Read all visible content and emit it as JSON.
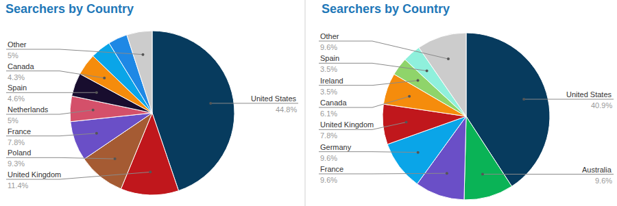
{
  "chart_data": [
    {
      "type": "pie",
      "title": "Searchers by Country",
      "categories": [
        "United States",
        "United Kingdom",
        "Poland",
        "France",
        "Netherlands",
        "Spain",
        "Canada",
        null,
        null,
        "Other"
      ],
      "values": [
        44.8,
        11.4,
        9.3,
        7.8,
        5,
        4.6,
        4.3,
        4.0,
        3.8,
        5
      ],
      "value_labels": [
        "44.8%",
        "11.4%",
        "9.3%",
        "7.8%",
        "5%",
        "4.6%",
        "4.3%",
        null,
        null,
        "5%"
      ],
      "colors": [
        "#073b5e",
        "#c0171c",
        "#a55b33",
        "#6a4fc7",
        "#d4506a",
        "#180d2e",
        "#f58c0c",
        "#0aa5e8",
        "#1e88e5",
        "#cccccc"
      ],
      "data_labels": true
    },
    {
      "type": "pie",
      "title": "Searchers by Country",
      "categories": [
        "United States",
        "Australia",
        "France",
        "Germany",
        "United Kingdom",
        "Canada",
        "Ireland",
        "Spain",
        "Other"
      ],
      "values": [
        40.9,
        9.6,
        9.6,
        9.6,
        7.8,
        6.1,
        3.5,
        3.5,
        9.6
      ],
      "value_labels": [
        "40.9%",
        "9.6%",
        "9.6%",
        "9.6%",
        "7.8%",
        "6.1%",
        "3.5%",
        "3.5%",
        "9.6%"
      ],
      "colors": [
        "#073b5e",
        "#0ab356",
        "#6a4fc7",
        "#0aa5e8",
        "#c0171c",
        "#f58c0c",
        "#8fd46a",
        "#8ff0dc",
        "#cccccc"
      ],
      "data_labels": true
    }
  ]
}
